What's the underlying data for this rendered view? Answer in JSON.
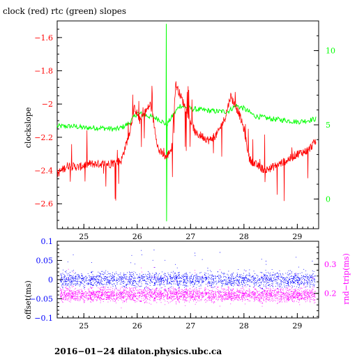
{
  "chart_data": [
    {
      "type": "line",
      "title": "clock (red) rtc (green) slopes",
      "xlabel": "",
      "ylabel": "clockslope",
      "x_ticks": [
        25,
        26,
        27,
        28,
        29
      ],
      "xlim": [
        24.5,
        29.4
      ],
      "y_left": {
        "label": "clockslope",
        "ticks": [
          -2.6,
          -2.4,
          -2.2,
          -2,
          -1.8,
          -1.6
        ],
        "tick_labels": [
          "−2.6",
          "−2.4",
          "−2.2",
          "−2",
          "−1.8",
          "−1.6"
        ],
        "ylim": [
          -2.75,
          -1.5
        ],
        "color": "#ff0000"
      },
      "y_right": {
        "ticks": [
          0,
          5,
          10
        ],
        "tick_labels": [
          "0",
          "5",
          "10"
        ],
        "ylim": [
          -2,
          12
        ],
        "color": "#00ff00"
      },
      "series": [
        {
          "color": "#ff0000",
          "axis": "left",
          "x": [
            24.5,
            24.7,
            24.9,
            25.1,
            25.3,
            25.5,
            25.7,
            25.85,
            25.95,
            26.05,
            26.15,
            26.25,
            26.4,
            26.55,
            26.65,
            26.72,
            26.8,
            26.9,
            27.0,
            27.1,
            27.2,
            27.35,
            27.5,
            27.65,
            27.75,
            27.82,
            27.9,
            28.0,
            28.1,
            28.2,
            28.4,
            28.6,
            28.8,
            29.0,
            29.2,
            29.35
          ],
          "values": [
            -2.42,
            -2.37,
            -2.38,
            -2.36,
            -2.36,
            -2.36,
            -2.34,
            -2.18,
            -2.02,
            -2.1,
            -2.05,
            -2.0,
            -2.28,
            -2.32,
            -2.26,
            -1.88,
            -1.94,
            -2.02,
            -2.1,
            -2.18,
            -2.19,
            -2.22,
            -2.18,
            -2.08,
            -1.95,
            -2.0,
            -2.05,
            -2.15,
            -2.33,
            -2.36,
            -2.4,
            -2.37,
            -2.34,
            -2.3,
            -2.28,
            -2.22
          ]
        },
        {
          "color": "#00ff00",
          "axis": "right",
          "x": [
            24.5,
            24.8,
            25.0,
            25.3,
            25.6,
            25.7,
            25.85,
            26.0,
            26.2,
            26.4,
            26.55,
            26.7,
            26.8,
            27.0,
            27.2,
            27.5,
            27.7,
            27.85,
            28.0,
            28.2,
            28.5,
            28.8,
            29.0,
            29.2,
            29.35
          ],
          "values": [
            4.9,
            4.9,
            4.8,
            4.8,
            4.7,
            4.8,
            5.1,
            5.8,
            5.6,
            5.4,
            5.0,
            5.8,
            6.3,
            6.1,
            6.0,
            5.9,
            5.9,
            6.3,
            6.1,
            5.6,
            5.4,
            5.3,
            5.2,
            5.3,
            5.4
          ]
        }
      ]
    },
    {
      "type": "scatter",
      "xlabel": "",
      "ylabel": "offset(ms)",
      "x_ticks": [
        25,
        26,
        27,
        28,
        29
      ],
      "xlim": [
        24.5,
        29.4
      ],
      "y_left": {
        "label": "offset(ms)",
        "ticks": [
          -0.1,
          -0.05,
          0,
          0.05,
          0.1
        ],
        "tick_labels": [
          "−0.1",
          "−0.05",
          "0",
          "0.05",
          "0.1"
        ],
        "ylim": [
          -0.1,
          0.1
        ],
        "color": "#0000ff"
      },
      "y_right": {
        "label": "rnd−trip(ms)",
        "ticks": [
          0.2,
          0.3
        ],
        "tick_labels": [
          "0.2",
          "0.3"
        ],
        "ylim": [
          0.115,
          0.38
        ],
        "color": "#ff00ff"
      },
      "series": [
        {
          "color": "#0000ff",
          "axis": "left",
          "band_center": 0.0,
          "band_halfwidth": 0.018
        },
        {
          "color": "#ff00ff",
          "axis": "right",
          "band_center": 0.195,
          "band_halfwidth": 0.022
        }
      ]
    }
  ],
  "footer": "2016−01−24 dilaton.physics.ubc.ca"
}
